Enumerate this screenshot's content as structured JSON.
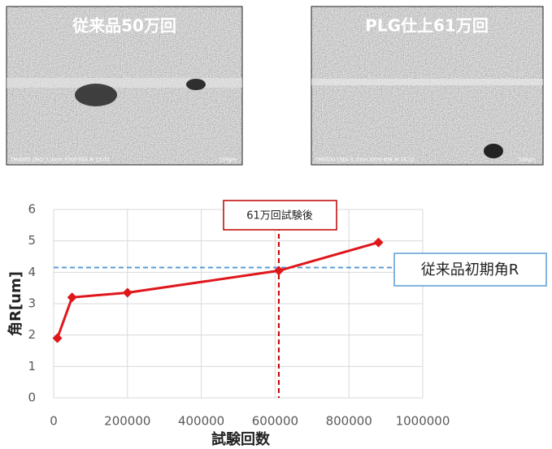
{
  "images": [
    {
      "caption": "従来品50万回",
      "footer": "TM4000 15kV 5.4mm X500 BSE M 13:03",
      "scale": "100μm"
    },
    {
      "caption": "PLG仕上61万回",
      "footer": "TM4000 15kV 5.2mm X500 BSE M 14:12",
      "scale": "100μm"
    }
  ],
  "chart_data": {
    "type": "line",
    "x_label": "試験回数",
    "y_label": "角R[um]",
    "x": [
      10000,
      50000,
      200000,
      610000,
      880000
    ],
    "series": [
      {
        "color": "#e0161b",
        "values": [
          1.9,
          3.2,
          3.35,
          4.05,
          4.95
        ]
      }
    ],
    "xlim": [
      0,
      1000000
    ],
    "xticks": [
      0,
      200000,
      400000,
      600000,
      800000,
      1000000
    ],
    "ylim": [
      0,
      6
    ],
    "yticks": [
      0,
      1,
      2,
      3,
      4,
      5,
      6
    ],
    "grid": true,
    "hline": {
      "value": 4.15,
      "label": "従来品初期角R",
      "color": "#5b9bd5"
    },
    "vline": {
      "value": 610000,
      "label": "61万回試験後",
      "color": "#c00000"
    }
  }
}
